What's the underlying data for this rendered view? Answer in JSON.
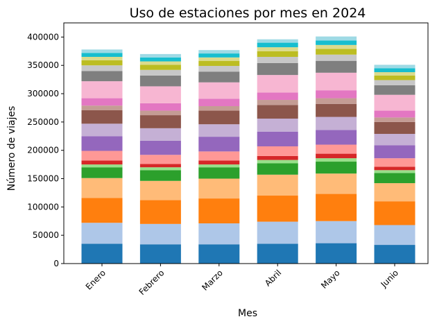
{
  "chart_data": {
    "type": "bar",
    "stacked": true,
    "title": "Uso de estaciones por mes en 2024",
    "xlabel": "Mes",
    "ylabel": "Número de viajes",
    "categories": [
      "Enero",
      "Febrero",
      "Marzo",
      "Abril",
      "Mayo",
      "Junio"
    ],
    "ylim": [
      0,
      425000
    ],
    "yticks": [
      0,
      50000,
      100000,
      150000,
      200000,
      250000,
      300000,
      350000,
      400000
    ],
    "grid": false,
    "legend": "none",
    "series": [
      {
        "color": "#1f77b4",
        "values": [
          35000,
          34000,
          34000,
          35000,
          36000,
          33000
        ]
      },
      {
        "color": "#aec7e8",
        "values": [
          37000,
          36000,
          37000,
          39000,
          39000,
          35000
        ]
      },
      {
        "color": "#ff7f0e",
        "values": [
          44000,
          42000,
          44000,
          46000,
          48000,
          42000
        ]
      },
      {
        "color": "#ffbb78",
        "values": [
          35000,
          34000,
          35000,
          37000,
          36000,
          32000
        ]
      },
      {
        "color": "#2ca02c",
        "values": [
          19000,
          19000,
          20000,
          20000,
          21000,
          18000
        ]
      },
      {
        "color": "#98df8a",
        "values": [
          5000,
          5000,
          5000,
          6000,
          6000,
          5000
        ]
      },
      {
        "color": "#d62728",
        "values": [
          7000,
          6000,
          7000,
          7000,
          8000,
          6000
        ]
      },
      {
        "color": "#ff9896",
        "values": [
          17000,
          16000,
          16000,
          17000,
          16000,
          15000
        ]
      },
      {
        "color": "#9467bd",
        "values": [
          26000,
          25000,
          26000,
          26000,
          26000,
          23000
        ]
      },
      {
        "color": "#c5b0d5",
        "values": [
          22000,
          22000,
          22000,
          23000,
          23000,
          20000
        ]
      },
      {
        "color": "#8c564b",
        "values": [
          24000,
          23000,
          24000,
          24000,
          23000,
          21000
        ]
      },
      {
        "color": "#c49c94",
        "values": [
          8000,
          8000,
          8000,
          9000,
          10000,
          8000
        ]
      },
      {
        "color": "#e377c2",
        "values": [
          13000,
          13000,
          13000,
          13000,
          14000,
          12000
        ]
      },
      {
        "color": "#f7b6d2",
        "values": [
          30000,
          30000,
          29000,
          31000,
          31000,
          28000
        ]
      },
      {
        "color": "#7f7f7f",
        "values": [
          18000,
          19000,
          19000,
          21000,
          21000,
          17000
        ]
      },
      {
        "color": "#c7c7c7",
        "values": [
          10000,
          10000,
          10000,
          11000,
          11000,
          9000
        ]
      },
      {
        "color": "#bcbd22",
        "values": [
          9000,
          9000,
          9000,
          10000,
          10000,
          8000
        ]
      },
      {
        "color": "#dbdb8d",
        "values": [
          6000,
          6000,
          6000,
          7000,
          7000,
          6000
        ]
      },
      {
        "color": "#17becf",
        "values": [
          7000,
          7000,
          7000,
          8000,
          8000,
          7000
        ]
      },
      {
        "color": "#9edae5",
        "values": [
          6000,
          6000,
          6000,
          6000,
          7000,
          6000
        ]
      }
    ]
  }
}
